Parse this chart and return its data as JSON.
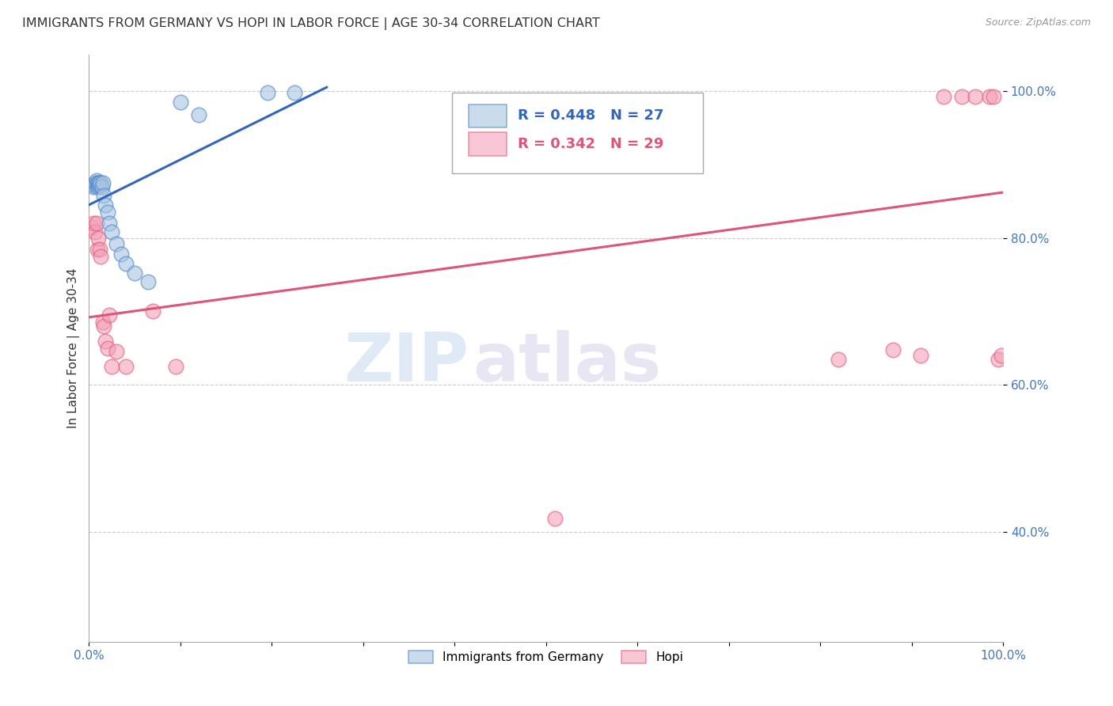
{
  "title": "IMMIGRANTS FROM GERMANY VS HOPI IN LABOR FORCE | AGE 30-34 CORRELATION CHART",
  "source": "Source: ZipAtlas.com",
  "ylabel": "In Labor Force | Age 30-34",
  "xlim": [
    0,
    1.0
  ],
  "ylim": [
    0.25,
    1.05
  ],
  "yticks": [
    0.4,
    0.6,
    0.8,
    1.0
  ],
  "yticklabels": [
    "40.0%",
    "60.0%",
    "80.0%",
    "100.0%"
  ],
  "legend_labels": [
    "Immigrants from Germany",
    "Hopi"
  ],
  "blue_R": "R = 0.448",
  "blue_N": "N = 27",
  "pink_R": "R = 0.342",
  "pink_N": "N = 29",
  "blue_color": "#A8C4E0",
  "pink_color": "#F4A0B8",
  "blue_edge_color": "#5588CC",
  "pink_edge_color": "#E06080",
  "blue_line_color": "#3366BB",
  "pink_line_color": "#DD5577",
  "watermark_zip": "ZIP",
  "watermark_atlas": "atlas",
  "blue_x": [
    0.005,
    0.006,
    0.007,
    0.008,
    0.009,
    0.009,
    0.01,
    0.01,
    0.011,
    0.012,
    0.013,
    0.014,
    0.015,
    0.016,
    0.018,
    0.02,
    0.022,
    0.025,
    0.03,
    0.035,
    0.04,
    0.05,
    0.065,
    0.1,
    0.12,
    0.195,
    0.225
  ],
  "blue_y": [
    0.87,
    0.872,
    0.875,
    0.878,
    0.87,
    0.875,
    0.872,
    0.875,
    0.875,
    0.872,
    0.875,
    0.87,
    0.875,
    0.858,
    0.845,
    0.835,
    0.82,
    0.808,
    0.792,
    0.778,
    0.765,
    0.752,
    0.74,
    0.985,
    0.968,
    0.998,
    0.998
  ],
  "pink_x": [
    0.003,
    0.005,
    0.007,
    0.008,
    0.009,
    0.01,
    0.012,
    0.013,
    0.015,
    0.016,
    0.018,
    0.02,
    0.022,
    0.025,
    0.03,
    0.04,
    0.07,
    0.095,
    0.51,
    0.82,
    0.88,
    0.91,
    0.935,
    0.955,
    0.97,
    0.985,
    0.99,
    0.995,
    0.998
  ],
  "pink_y": [
    0.815,
    0.82,
    0.808,
    0.82,
    0.785,
    0.8,
    0.785,
    0.775,
    0.685,
    0.68,
    0.66,
    0.65,
    0.695,
    0.625,
    0.645,
    0.625,
    0.7,
    0.625,
    0.418,
    0.635,
    0.648,
    0.64,
    0.992,
    0.992,
    0.992,
    0.992,
    0.992,
    0.635,
    0.64
  ],
  "blue_line_x": [
    0.0,
    0.26
  ],
  "blue_line_y_start": 0.845,
  "blue_line_y_end": 1.005,
  "pink_line_x": [
    0.0,
    1.0
  ],
  "pink_line_y_start": 0.692,
  "pink_line_y_end": 0.862
}
